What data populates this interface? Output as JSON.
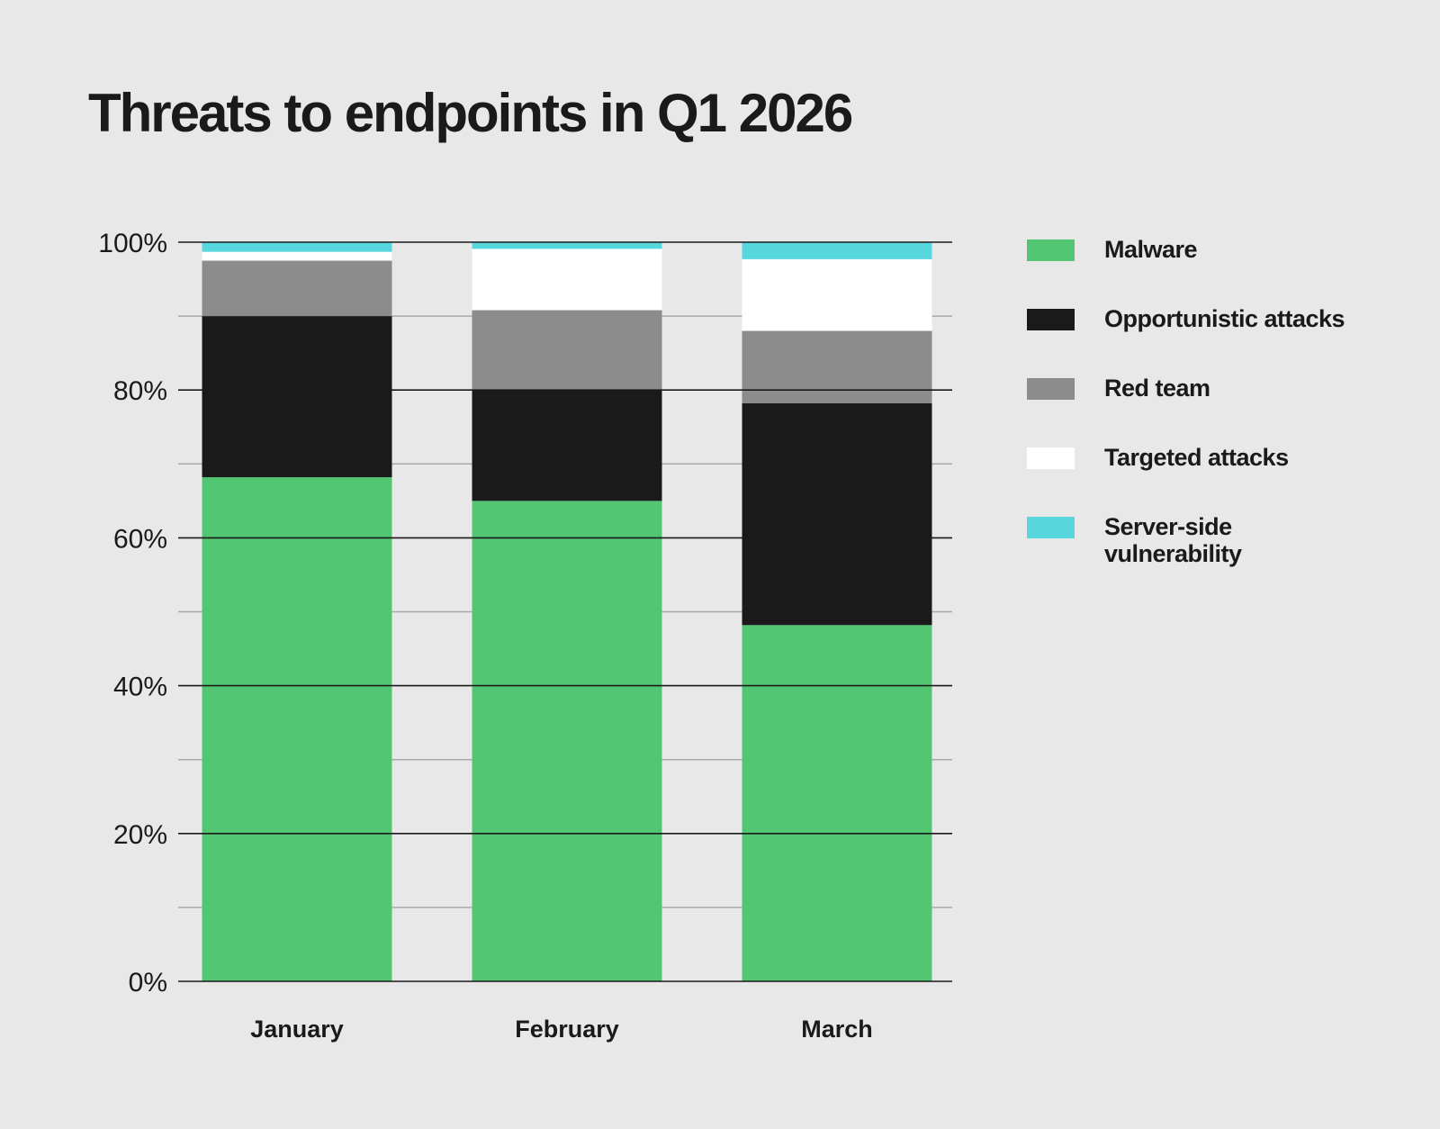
{
  "title": "Threats to endpoints in Q1 2026",
  "chart_data": {
    "type": "bar",
    "stacked": true,
    "categories": [
      "January",
      "February",
      "March"
    ],
    "series": [
      {
        "name": "Malware",
        "color": "#52c672",
        "values": [
          68.2,
          65.0,
          48.2
        ]
      },
      {
        "name": "Opportunistic attacks",
        "color": "#1a1a1a",
        "values": [
          21.8,
          15.0,
          30.0
        ]
      },
      {
        "name": "Red team",
        "color": "#8c8c8c",
        "values": [
          7.5,
          10.8,
          9.8
        ]
      },
      {
        "name": "Targeted attacks",
        "color": "#ffffff",
        "values": [
          1.2,
          8.3,
          9.7
        ]
      },
      {
        "name": "Server-side vulnerability",
        "color": "#58d6de",
        "values": [
          1.3,
          0.9,
          2.3
        ]
      }
    ],
    "yticks": [
      "0%",
      "20%",
      "40%",
      "60%",
      "80%",
      "100%"
    ],
    "ylim": [
      0,
      100
    ],
    "minor_grid_step": 10,
    "legend_position": "right"
  }
}
